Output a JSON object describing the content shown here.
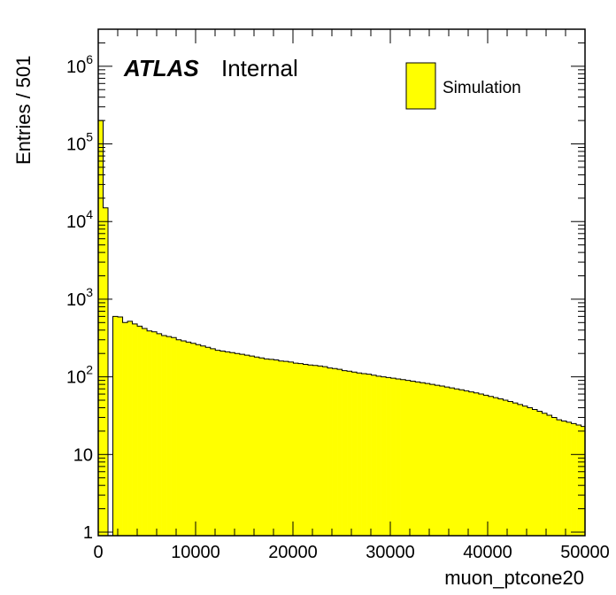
{
  "chart_data": {
    "type": "bar",
    "style": "histogram",
    "xlabel": "muon_ptcone20",
    "ylabel": "Entries / 501",
    "xlim": [
      0,
      50000
    ],
    "ylim": [
      0.9,
      3000000
    ],
    "log_y": true,
    "grid": false,
    "fill_color": "#ffff00",
    "line_color": "#000000",
    "legend": {
      "position": "top-right",
      "entries": [
        "Simulation"
      ]
    },
    "atlas_label": "ATLAS",
    "atlas_status": "Internal",
    "x_ticks": [
      0,
      10000,
      20000,
      30000,
      40000,
      50000
    ],
    "x_tick_labels": [
      "0",
      "10000",
      "20000",
      "30000",
      "40000",
      "50000"
    ],
    "y_ticks": [
      1,
      10,
      100,
      1000,
      10000,
      100000,
      1000000
    ],
    "y_tick_labels": [
      {
        "base": "1",
        "exp": ""
      },
      {
        "base": "10",
        "exp": ""
      },
      {
        "base": "10",
        "exp": "2"
      },
      {
        "base": "10",
        "exp": "3"
      },
      {
        "base": "10",
        "exp": "4"
      },
      {
        "base": "10",
        "exp": "5"
      },
      {
        "base": "10",
        "exp": "6"
      }
    ],
    "bin_width": 501,
    "x_start": 0,
    "values": [
      200000,
      15000,
      0,
      600,
      590,
      500,
      520,
      480,
      450,
      420,
      390,
      380,
      360,
      340,
      330,
      320,
      300,
      290,
      280,
      270,
      260,
      250,
      240,
      230,
      220,
      215,
      210,
      205,
      200,
      195,
      190,
      185,
      180,
      175,
      170,
      168,
      165,
      160,
      158,
      155,
      150,
      148,
      145,
      142,
      140,
      138,
      135,
      130,
      128,
      125,
      120,
      118,
      115,
      112,
      110,
      108,
      105,
      102,
      100,
      98,
      96,
      94,
      92,
      90,
      88,
      86,
      84,
      82,
      80,
      78,
      76,
      74,
      72,
      70,
      68,
      66,
      64,
      62,
      60,
      58,
      56,
      54,
      52,
      50,
      48,
      46,
      44,
      42,
      40,
      38,
      36,
      34,
      32,
      30,
      28,
      27,
      26,
      25,
      24,
      23
    ]
  }
}
